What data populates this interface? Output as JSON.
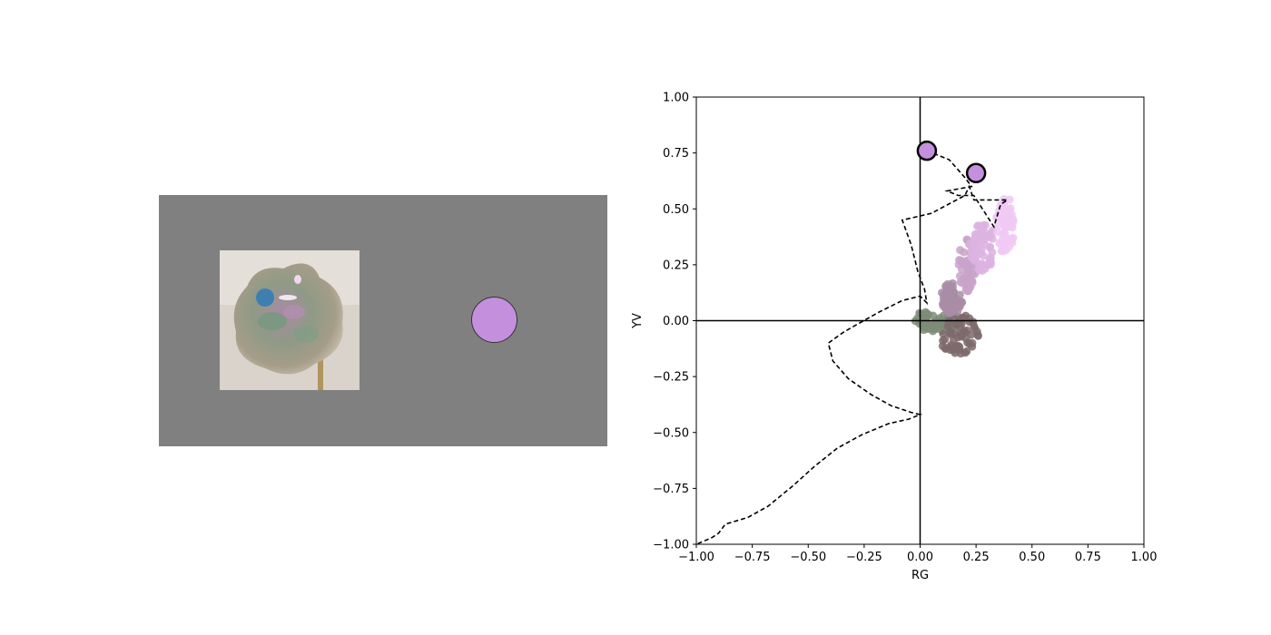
{
  "left_panel": {
    "background": "#808080",
    "probe_color": "#3f7fb0",
    "match_color": "#c490dd"
  },
  "chart_data": {
    "type": "scatter",
    "title": "",
    "xlabel": "RG",
    "ylabel": "YV",
    "xlim": [
      -1.0,
      1.0
    ],
    "ylim": [
      -1.0,
      1.0
    ],
    "xticks": [
      "−1.00",
      "−0.75",
      "−0.50",
      "−0.25",
      "0.00",
      "0.25",
      "0.50",
      "0.75",
      "1.00"
    ],
    "yticks": [
      "−1.00",
      "−0.75",
      "−0.50",
      "−0.25",
      "0.00",
      "0.25",
      "0.50",
      "0.75",
      "1.00"
    ],
    "grid": false,
    "zero_lines": true,
    "highlight_points": [
      {
        "x": 0.03,
        "y": 0.76,
        "color": "#c490dd"
      },
      {
        "x": 0.25,
        "y": 0.66,
        "color": "#c490dd"
      }
    ],
    "dashed_path": [
      [
        0.03,
        0.76
      ],
      [
        0.13,
        0.72
      ],
      [
        0.2,
        0.64
      ],
      [
        0.23,
        0.6
      ],
      [
        0.12,
        0.58
      ],
      [
        0.17,
        0.56
      ],
      [
        0.24,
        0.56
      ],
      [
        0.33,
        0.42
      ],
      [
        0.36,
        0.52
      ],
      [
        0.39,
        0.54
      ],
      [
        0.24,
        0.54
      ],
      [
        0.22,
        0.6
      ],
      [
        0.2,
        0.56
      ],
      [
        0.05,
        0.48
      ],
      [
        -0.08,
        0.45
      ],
      [
        -0.04,
        0.34
      ],
      [
        -0.01,
        0.22
      ],
      [
        0.02,
        0.14
      ],
      [
        0.03,
        0.08
      ],
      [
        0.0,
        0.11
      ],
      [
        -0.08,
        0.09
      ],
      [
        -0.18,
        0.04
      ],
      [
        -0.27,
        -0.01
      ],
      [
        -0.34,
        -0.05
      ],
      [
        -0.41,
        -0.1
      ],
      [
        -0.39,
        -0.18
      ],
      [
        -0.32,
        -0.26
      ],
      [
        -0.22,
        -0.33
      ],
      [
        -0.13,
        -0.38
      ],
      [
        -0.04,
        -0.41
      ],
      [
        0.0,
        -0.42
      ],
      [
        -0.05,
        -0.44
      ],
      [
        -0.14,
        -0.46
      ],
      [
        -0.26,
        -0.51
      ],
      [
        -0.37,
        -0.57
      ],
      [
        -0.47,
        -0.65
      ],
      [
        -0.57,
        -0.74
      ],
      [
        -0.68,
        -0.83
      ],
      [
        -0.77,
        -0.88
      ],
      [
        -0.87,
        -0.91
      ],
      [
        -0.9,
        -0.95
      ],
      [
        -0.93,
        -0.97
      ],
      [
        -1.0,
        -1.0
      ]
    ],
    "cloud_clusters": [
      {
        "cx": 0.07,
        "cy": 0.0,
        "rx": 0.11,
        "ry": 0.05,
        "color": "#7d8c77"
      },
      {
        "cx": 0.17,
        "cy": -0.06,
        "rx": 0.09,
        "ry": 0.09,
        "color": "#7e6a6c"
      },
      {
        "cx": 0.14,
        "cy": 0.1,
        "rx": 0.05,
        "ry": 0.07,
        "color": "#a98ca6"
      },
      {
        "cx": 0.21,
        "cy": 0.25,
        "rx": 0.04,
        "ry": 0.12,
        "color": "#c9a3c9"
      },
      {
        "cx": 0.28,
        "cy": 0.34,
        "rx": 0.06,
        "ry": 0.12,
        "color": "#dcb3e0"
      },
      {
        "cx": 0.38,
        "cy": 0.43,
        "rx": 0.04,
        "ry": 0.14,
        "color": "#f0c9f4"
      }
    ]
  }
}
